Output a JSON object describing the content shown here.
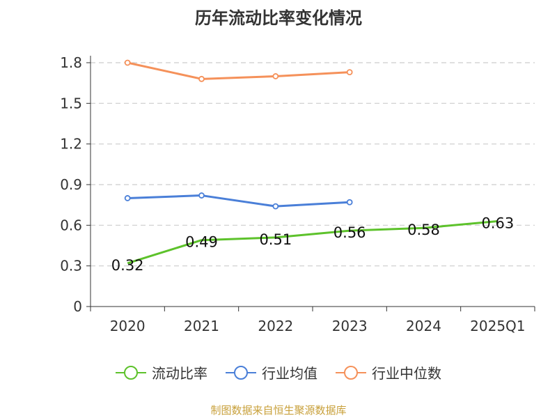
{
  "chart_data": {
    "type": "line",
    "title": "历年流动比率变化情况",
    "categories": [
      "2020",
      "2021",
      "2022",
      "2023",
      "2024",
      "2025Q1"
    ],
    "ylim": [
      0,
      1.8
    ],
    "yticks": [
      "0",
      "0.3",
      "0.6",
      "0.9",
      "1.2",
      "1.5",
      "1.8"
    ],
    "ytick_values": [
      0,
      0.3,
      0.6,
      0.9,
      1.2,
      1.5,
      1.8
    ],
    "grid": true,
    "series": [
      {
        "name": "流动比率",
        "color": "#5dc22b",
        "values": [
          0.32,
          0.49,
          0.51,
          0.56,
          0.58,
          0.63
        ],
        "labels": [
          "0.32",
          "0.49",
          "0.51",
          "0.56",
          "0.58",
          "0.63"
        ]
      },
      {
        "name": "行业均值",
        "color": "#4a7fd8",
        "values": [
          0.8,
          0.82,
          0.74,
          0.77,
          null,
          null
        ]
      },
      {
        "name": "行业中位数",
        "color": "#f5915a",
        "values": [
          1.8,
          1.68,
          1.7,
          1.73,
          null,
          null
        ]
      }
    ],
    "legend_position": "bottom",
    "source_note": "制图数据来自恒生聚源数据库"
  }
}
